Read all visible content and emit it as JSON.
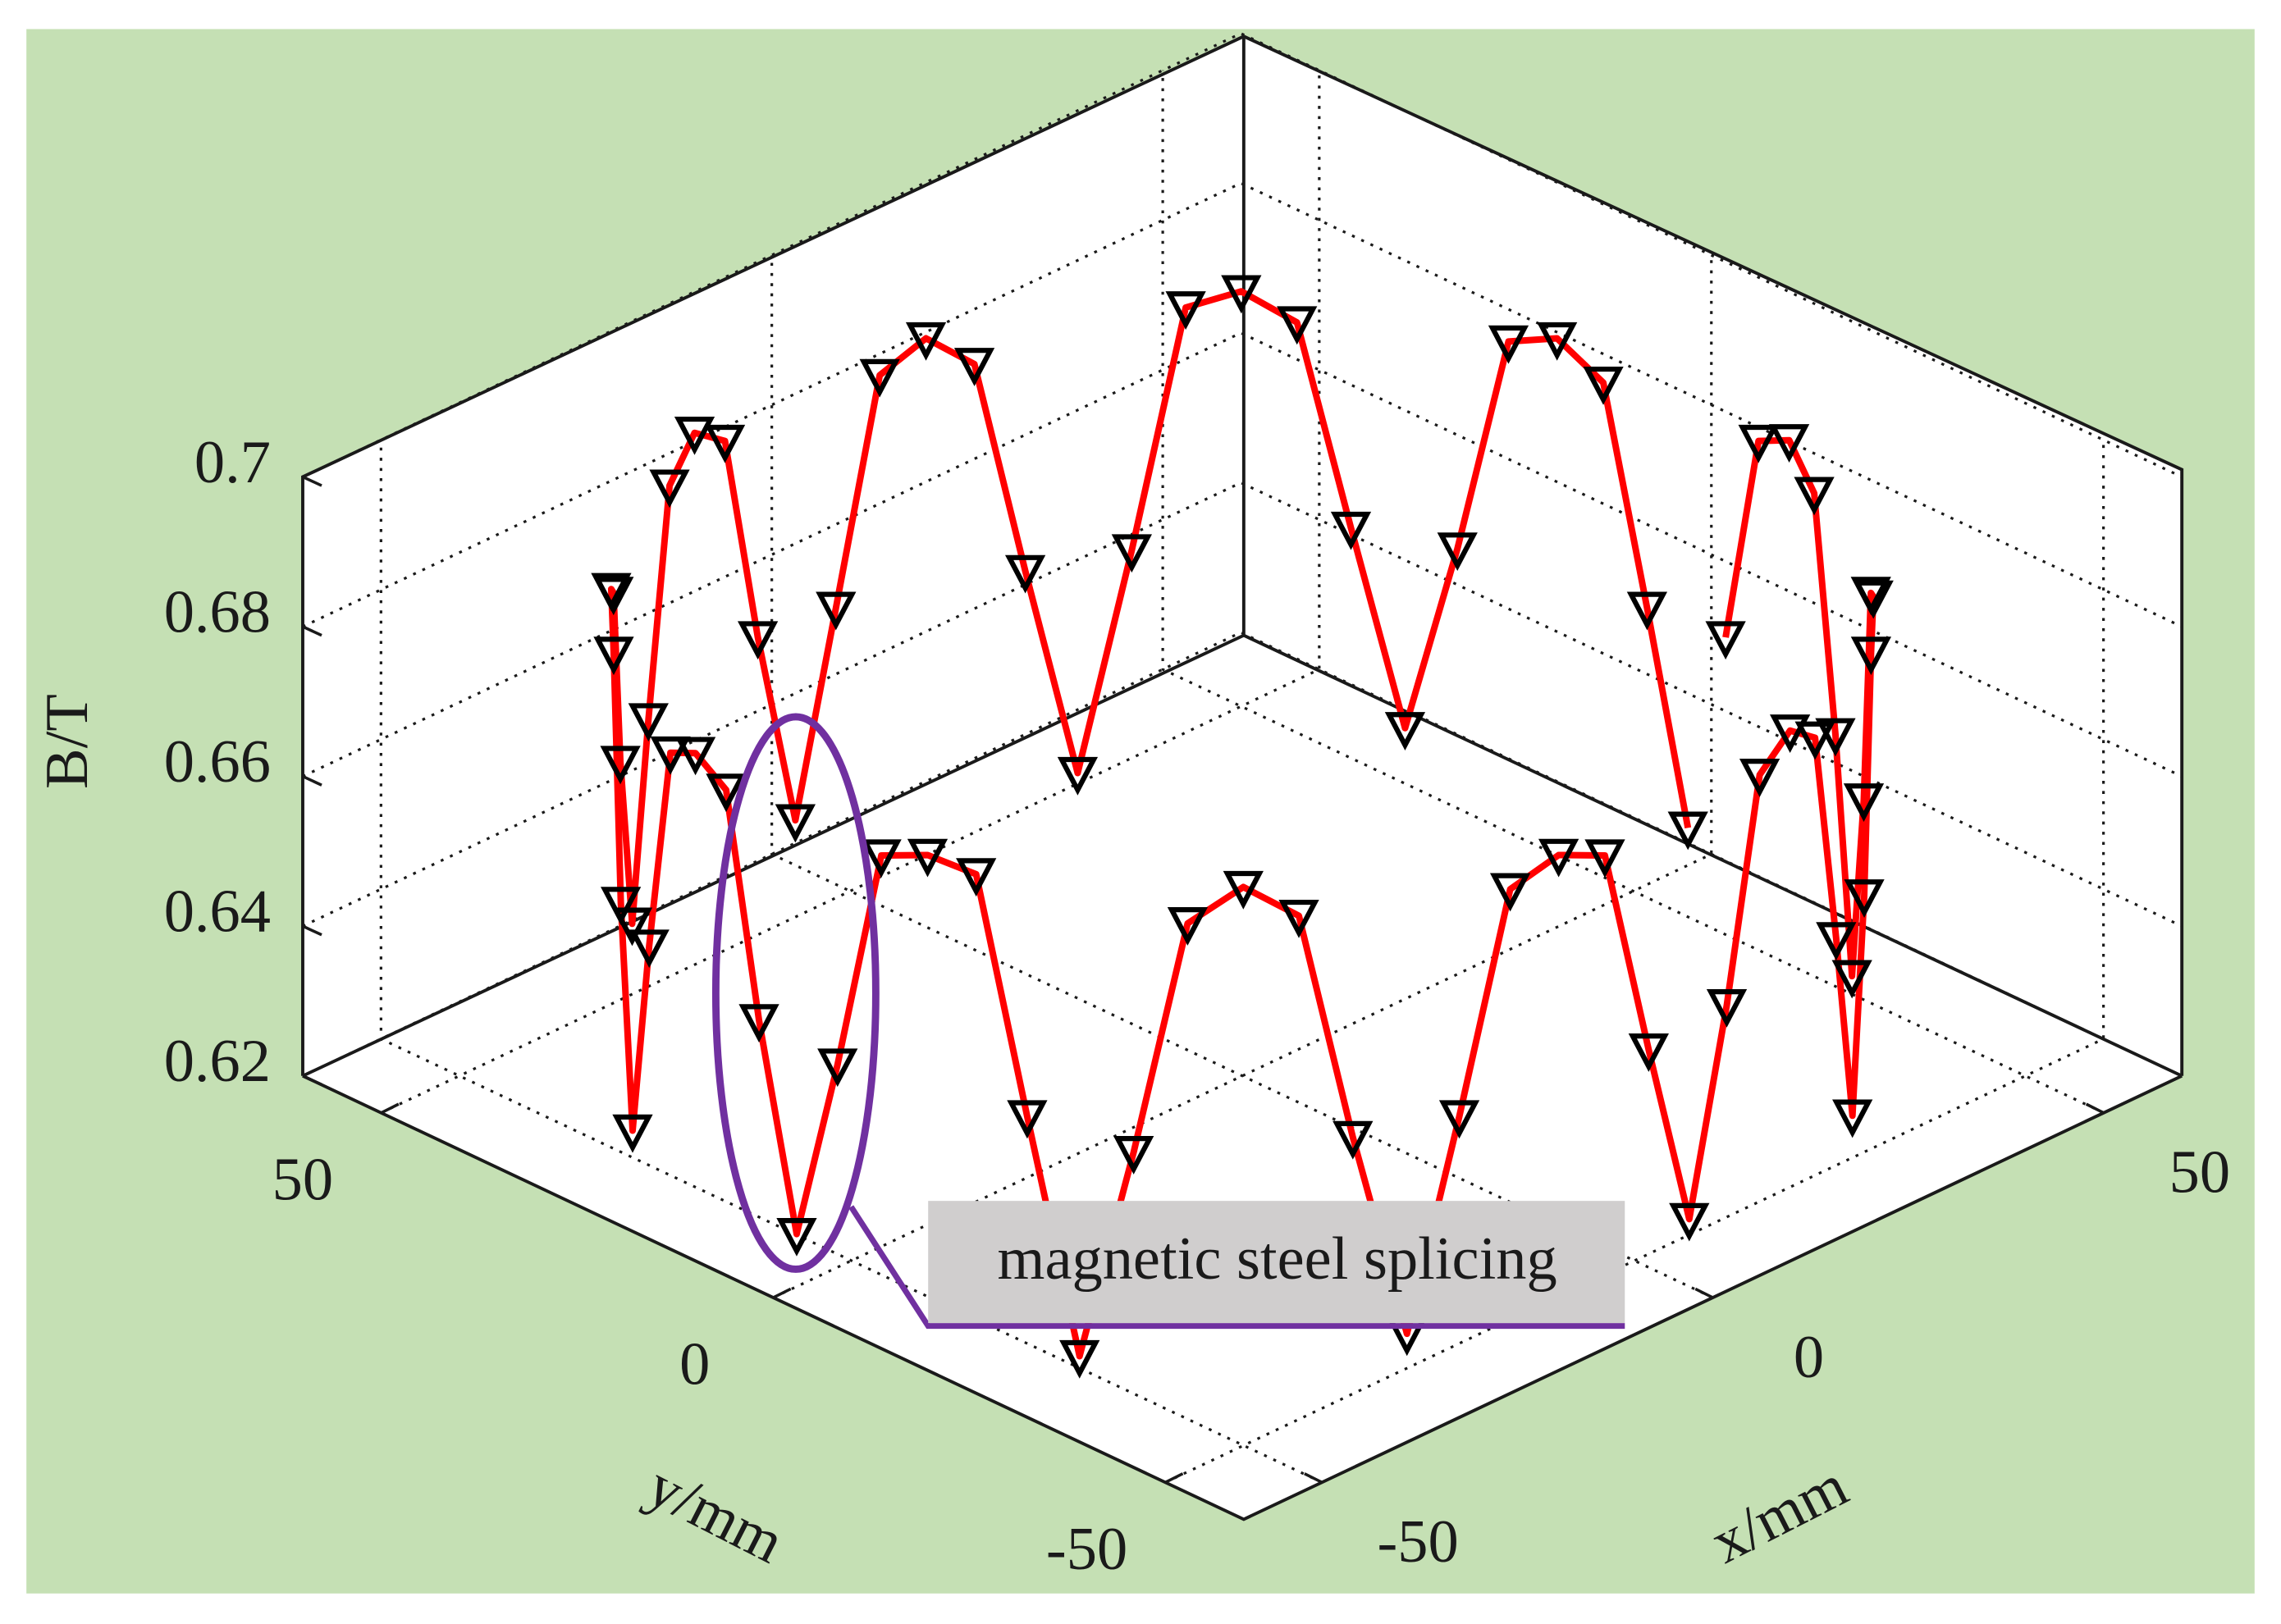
{
  "chart_data": {
    "type": "line3d",
    "zlabel": "B/T",
    "xlabel": "x/mm",
    "ylabel": "y/mm",
    "annotation": "magnetic steel splicing",
    "xlim": [
      -60,
      60
    ],
    "ylim": [
      -60,
      60
    ],
    "zlim": [
      0.62,
      0.7
    ],
    "xticks": [
      -50,
      0,
      50
    ],
    "yticks": [
      -50,
      0,
      50
    ],
    "zticks": [
      0.62,
      0.64,
      0.66,
      0.68,
      0.7
    ],
    "grid": true,
    "color": "#ff0000",
    "marker_color": "#000000",
    "x": [
      57.0,
      56.8,
      56.1,
      55.1,
      53.6,
      51.7,
      49.4,
      46.7,
      43.7,
      40.3,
      36.6,
      32.7,
      28.5,
      24.1,
      19.5,
      14.8,
      9.9,
      5.0,
      0,
      -5.0,
      -9.9,
      -14.8,
      -19.5,
      -24.1,
      -28.5,
      -32.7,
      -36.6,
      -40.3,
      -43.7,
      -46.7,
      -49.4,
      -51.7,
      -53.6,
      -55.1,
      -56.1,
      -56.8,
      -57.0,
      -56.8,
      -56.1,
      -55.1,
      -53.6,
      -51.7,
      -49.4,
      -46.7,
      -43.7,
      -40.3,
      -36.6,
      -32.7,
      -28.5,
      -24.1,
      -19.5,
      -14.8,
      -9.9,
      -5.0,
      0,
      5.0,
      9.9,
      14.8,
      19.5,
      24.1,
      28.5,
      32.7,
      36.6,
      40.3,
      43.7,
      46.7,
      49.4,
      51.7,
      53.6,
      55.1,
      56.1,
      56.8
    ],
    "y": [
      0,
      5.0,
      9.9,
      14.8,
      19.5,
      24.1,
      28.5,
      32.7,
      36.6,
      40.3,
      43.7,
      46.7,
      49.4,
      51.7,
      53.6,
      55.1,
      56.1,
      56.8,
      57.0,
      56.8,
      56.1,
      55.1,
      53.6,
      51.7,
      49.4,
      46.7,
      43.7,
      40.3,
      36.6,
      32.7,
      28.5,
      24.1,
      19.5,
      14.8,
      9.9,
      5.0,
      0,
      -5.0,
      -9.9,
      -14.8,
      -19.5,
      -24.1,
      -28.5,
      -32.7,
      -36.6,
      -40.3,
      -43.7,
      -46.7,
      -49.4,
      -51.7,
      -53.6,
      -55.1,
      -56.1,
      -56.8,
      -57.0,
      -56.8,
      -56.1,
      -55.1,
      -53.6,
      -51.7,
      -49.4,
      -46.7,
      -43.7,
      -40.3,
      -36.6,
      -32.7,
      -28.5,
      -24.1,
      -19.5,
      -14.8,
      -9.9,
      -5.0
    ],
    "z": [
      0.625,
      0.652,
      0.68,
      0.684,
      0.682,
      0.653,
      0.628,
      0.654,
      0.681,
      0.685,
      0.683,
      0.651,
      0.622,
      0.65,
      0.679,
      0.684,
      0.681,
      0.652,
      0.626,
      0.653,
      0.682,
      0.686,
      0.682,
      0.654,
      0.63,
      0.655,
      0.681,
      0.685,
      0.68,
      0.65,
      0.623,
      0.651,
      0.68,
      0.683,
      0.681,
      0.653,
      0.627,
      0.652,
      0.682,
      0.684,
      0.683,
      0.652,
      0.621,
      0.649,
      0.68,
      0.685,
      0.681,
      0.651,
      0.624,
      0.652,
      0.681,
      0.684,
      0.682,
      0.654,
      0.629,
      0.655,
      0.683,
      0.686,
      0.682,
      0.652,
      0.625,
      0.651,
      0.68,
      0.684,
      0.681,
      0.65,
      0.623,
      0.652,
      0.681,
      0.685,
      0.682,
      0.653
    ]
  }
}
